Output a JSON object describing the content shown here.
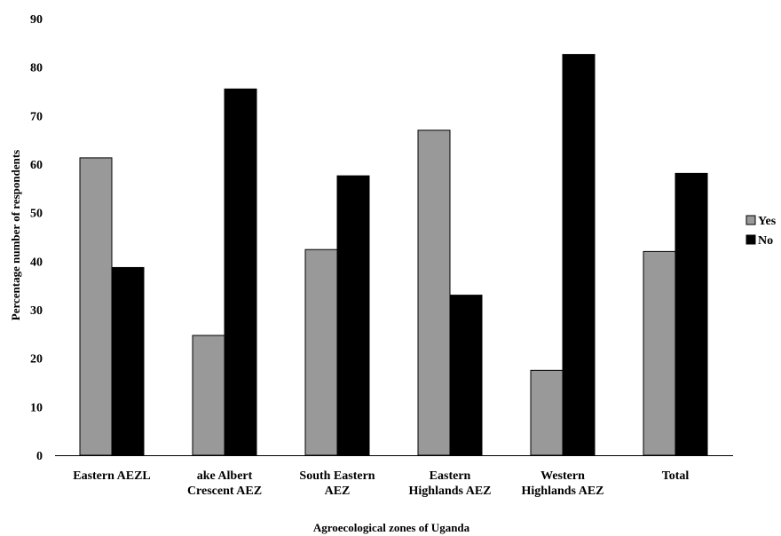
{
  "chart_data": {
    "type": "bar",
    "categories": [
      [
        "Eastern AEZL"
      ],
      [
        "ake Albert",
        "Crescent AEZ"
      ],
      [
        "South Eastern",
        "AEZ"
      ],
      [
        "Eastern",
        "Highlands AEZ"
      ],
      [
        "Western",
        "Highlands AEZ"
      ],
      [
        "Total"
      ]
    ],
    "series": [
      {
        "name": "Yes",
        "color": "#999999",
        "values": [
          61.3,
          24.7,
          42.4,
          67.0,
          17.5,
          42.0
        ]
      },
      {
        "name": "No",
        "color": "#000000",
        "values": [
          38.7,
          75.5,
          57.6,
          33.0,
          82.6,
          58.1
        ]
      }
    ],
    "xlabel": "Agroecological zones of Uganda",
    "ylabel": "Percentage number of respondents",
    "ylim": [
      0,
      90
    ],
    "yticks": [
      0,
      10,
      20,
      30,
      40,
      50,
      60,
      70,
      80,
      90
    ],
    "grid": false,
    "legend": "right"
  }
}
